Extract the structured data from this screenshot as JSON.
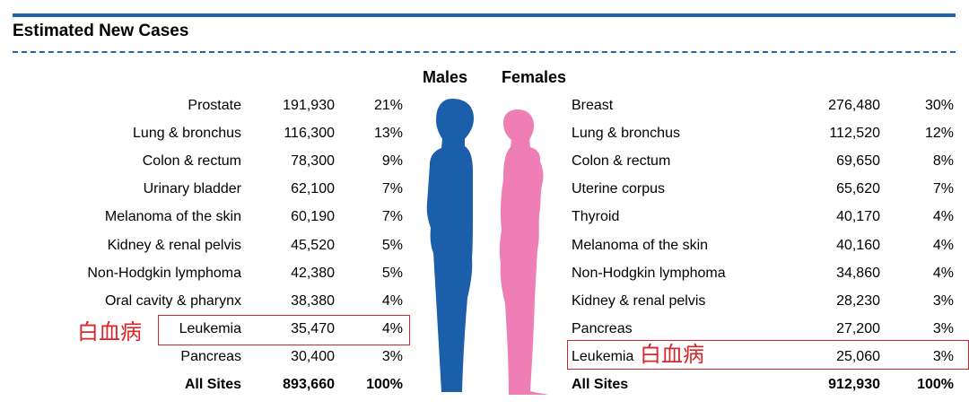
{
  "title": "Estimated New Cases",
  "males": {
    "heading": "Males",
    "rows": [
      {
        "site": "Prostate",
        "cases": "191,930",
        "pct": "21%"
      },
      {
        "site": "Lung & bronchus",
        "cases": "116,300",
        "pct": "13%"
      },
      {
        "site": "Colon & rectum",
        "cases": "78,300",
        "pct": "9%"
      },
      {
        "site": "Urinary bladder",
        "cases": "62,100",
        "pct": "7%"
      },
      {
        "site": "Melanoma of the skin",
        "cases": "60,190",
        "pct": "7%"
      },
      {
        "site": "Kidney & renal pelvis",
        "cases": "45,520",
        "pct": "5%"
      },
      {
        "site": "Non-Hodgkin lymphoma",
        "cases": "42,380",
        "pct": "5%"
      },
      {
        "site": "Oral cavity & pharynx",
        "cases": "38,380",
        "pct": "4%"
      },
      {
        "site": "Leukemia",
        "cases": "35,470",
        "pct": "4%"
      },
      {
        "site": "Pancreas",
        "cases": "30,400",
        "pct": "3%"
      }
    ],
    "total": {
      "site": "All Sites",
      "cases": "893,660",
      "pct": "100%"
    },
    "highlight_label": "白血病",
    "figure_color": "#1b5faa"
  },
  "females": {
    "heading": "Females",
    "rows": [
      {
        "site": "Breast",
        "cases": "276,480",
        "pct": "30%"
      },
      {
        "site": "Lung & bronchus",
        "cases": "112,520",
        "pct": "12%"
      },
      {
        "site": "Colon & rectum",
        "cases": "69,650",
        "pct": "8%"
      },
      {
        "site": "Uterine corpus",
        "cases": "65,620",
        "pct": "7%"
      },
      {
        "site": "Thyroid",
        "cases": "40,170",
        "pct": "4%"
      },
      {
        "site": "Melanoma of the skin",
        "cases": "40,160",
        "pct": "4%"
      },
      {
        "site": "Non-Hodgkin lymphoma",
        "cases": "34,860",
        "pct": "4%"
      },
      {
        "site": "Kidney & renal pelvis",
        "cases": "28,230",
        "pct": "3%"
      },
      {
        "site": "Pancreas",
        "cases": "27,200",
        "pct": "3%"
      },
      {
        "site": "Leukemia",
        "cases": "25,060",
        "pct": "3%"
      }
    ],
    "total": {
      "site": "All Sites",
      "cases": "912,930",
      "pct": "100%"
    },
    "highlight_label": "白血病",
    "figure_color": "#ee7eb4"
  },
  "colors": {
    "rule": "#1f66ad",
    "highlight": "#c6282b",
    "highlight_text": "#d8262b"
  }
}
